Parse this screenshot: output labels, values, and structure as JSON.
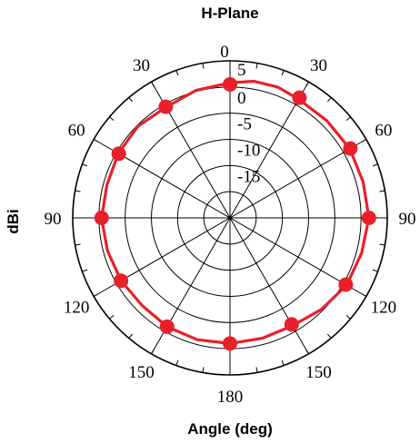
{
  "chart_data": {
    "type": "polar-line",
    "title": "H-Plane",
    "xlabel": "Angle (deg)",
    "ylabel": "dBi",
    "angle_tick_labels": [
      {
        "angle": 0,
        "text": "0"
      },
      {
        "angle": 30,
        "text": "30"
      },
      {
        "angle": 60,
        "text": "60"
      },
      {
        "angle": 90,
        "text": "90"
      },
      {
        "angle": 120,
        "text": "120"
      },
      {
        "angle": 150,
        "text": "150"
      },
      {
        "angle": 180,
        "text": "180"
      },
      {
        "angle": 210,
        "text": "150"
      },
      {
        "angle": 240,
        "text": "120"
      },
      {
        "angle": 270,
        "text": "90"
      },
      {
        "angle": 300,
        "text": "60"
      },
      {
        "angle": 330,
        "text": "30"
      }
    ],
    "radial_ticks": [
      5,
      0,
      -5,
      -10,
      -15
    ],
    "radial_range": [
      -25,
      5
    ],
    "grid": true,
    "series": [
      {
        "color": "#e8202a",
        "markers": [
          {
            "angle": 0,
            "value": 0.5
          },
          {
            "angle": 30,
            "value": 1.5
          },
          {
            "angle": 60,
            "value": 1.5
          },
          {
            "angle": 90,
            "value": 1.5
          },
          {
            "angle": 120,
            "value": 0.5
          },
          {
            "angle": 150,
            "value": -1.5
          },
          {
            "angle": 180,
            "value": -1
          },
          {
            "angle": 210,
            "value": -1
          },
          {
            "angle": 240,
            "value": -1
          },
          {
            "angle": 270,
            "value": -0.5
          },
          {
            "angle": 300,
            "value": -0.5
          },
          {
            "angle": 330,
            "value": -0.5
          }
        ],
        "curve": [
          {
            "angle": 0,
            "value": 0.8
          },
          {
            "angle": 10,
            "value": 1.5
          },
          {
            "angle": 20,
            "value": 1.6
          },
          {
            "angle": 30,
            "value": 1.2
          },
          {
            "angle": 45,
            "value": 1.2
          },
          {
            "angle": 60,
            "value": 1.4
          },
          {
            "angle": 75,
            "value": 1.3
          },
          {
            "angle": 90,
            "value": 1.5
          },
          {
            "angle": 105,
            "value": 1.0
          },
          {
            "angle": 120,
            "value": 0.7
          },
          {
            "angle": 135,
            "value": -0.3
          },
          {
            "angle": 150,
            "value": -1.2
          },
          {
            "angle": 165,
            "value": -1.2
          },
          {
            "angle": 180,
            "value": -1.0
          },
          {
            "angle": 195,
            "value": -0.9
          },
          {
            "angle": 210,
            "value": -1.0
          },
          {
            "angle": 225,
            "value": -1.3
          },
          {
            "angle": 240,
            "value": -1.0
          },
          {
            "angle": 255,
            "value": -0.8
          },
          {
            "angle": 270,
            "value": -0.5
          },
          {
            "angle": 285,
            "value": -0.7
          },
          {
            "angle": 300,
            "value": -0.4
          },
          {
            "angle": 315,
            "value": -0.2
          },
          {
            "angle": 330,
            "value": -0.6
          },
          {
            "angle": 345,
            "value": 0.2
          }
        ]
      }
    ]
  }
}
